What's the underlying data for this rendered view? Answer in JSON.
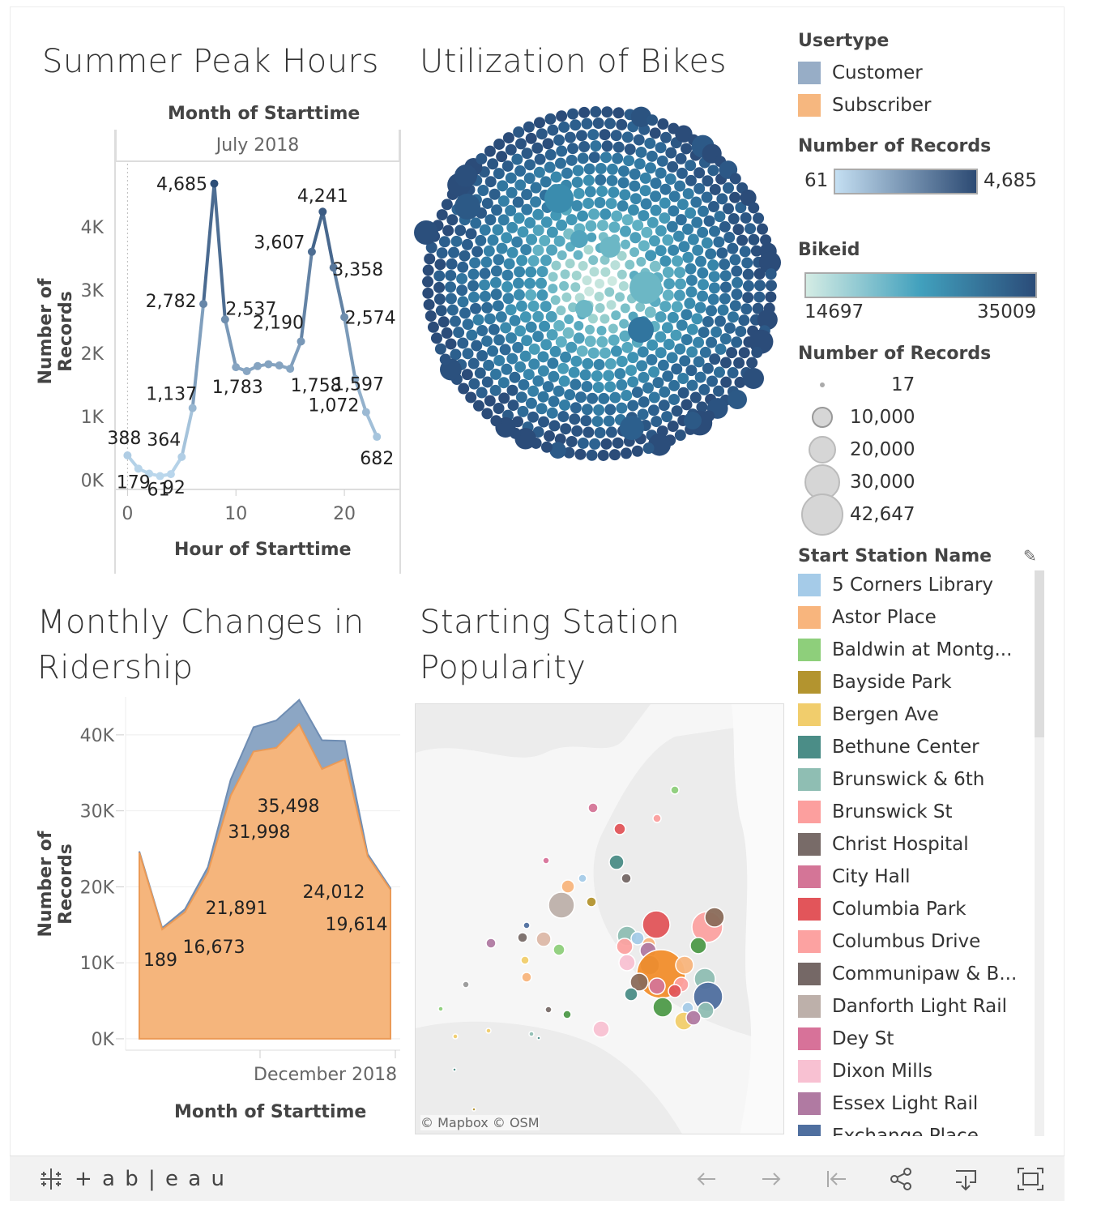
{
  "dashboard": {
    "titles": {
      "peak": "Summer Peak Hours",
      "util": "Utilization of Bikes",
      "monthly_line1": "Monthly Changes in",
      "monthly_line2": "Ridership",
      "station_line1": "Starting Station",
      "station_line2": "Popularity"
    }
  },
  "peak_chart": {
    "col_header": "Month of Starttime",
    "panel_label": "July 2018",
    "y_title": "Number of Records",
    "x_title": "Hour of Starttime",
    "y_ticks": [
      "4K",
      "3K",
      "2K",
      "1K",
      "0K"
    ],
    "x_ticks": [
      "0",
      "10",
      "20"
    ]
  },
  "monthly_chart": {
    "y_title": "Number of Records",
    "x_title": "Month of Starttime",
    "x_label": "December 2018",
    "y_ticks": [
      "40K",
      "30K",
      "20K",
      "10K",
      "0K"
    ]
  },
  "chart_data": [
    {
      "type": "line",
      "title": "Summer Peak Hours",
      "xlabel": "Hour of Starttime",
      "ylabel": "Number of Records",
      "x": [
        0,
        1,
        2,
        3,
        4,
        5,
        6,
        7,
        8,
        9,
        10,
        11,
        12,
        13,
        14,
        15,
        16,
        17,
        18,
        19,
        20,
        21,
        22,
        23
      ],
      "values": [
        388,
        179,
        100,
        61,
        92,
        364,
        1137,
        2782,
        4685,
        2537,
        1783,
        1720,
        1800,
        1830,
        1810,
        1758,
        2190,
        3607,
        4241,
        3358,
        2574,
        1597,
        1072,
        682
      ],
      "data_labels": [
        {
          "x": 0,
          "text": "388"
        },
        {
          "x": 1,
          "text": "179"
        },
        {
          "x": 3,
          "text": "61"
        },
        {
          "x": 4,
          "text": "92"
        },
        {
          "x": 5,
          "text": "364"
        },
        {
          "x": 6,
          "text": "1,137"
        },
        {
          "x": 7,
          "text": "2,782"
        },
        {
          "x": 8,
          "text": "4,685"
        },
        {
          "x": 9,
          "text": "2,537"
        },
        {
          "x": 10,
          "text": "1,783"
        },
        {
          "x": 15,
          "text": "1,758"
        },
        {
          "x": 16,
          "text": "2,190"
        },
        {
          "x": 17,
          "text": "3,607"
        },
        {
          "x": 18,
          "text": "4,241"
        },
        {
          "x": 19,
          "text": "3,358"
        },
        {
          "x": 20,
          "text": "2,574"
        },
        {
          "x": 21,
          "text": "1,597"
        },
        {
          "x": 22,
          "text": "1,072"
        },
        {
          "x": 23,
          "text": "682"
        }
      ],
      "xlim": [
        -1,
        25
      ],
      "ylim": [
        -150,
        5000
      ]
    },
    {
      "type": "area",
      "title": "Monthly Changes in Ridership",
      "xlabel": "Month of Starttime",
      "ylabel": "Number of Records",
      "x": [
        1,
        2,
        3,
        4,
        5,
        6,
        7,
        8,
        9,
        10,
        11,
        12
      ],
      "series": [
        {
          "name": "Subscriber",
          "values": [
            24500,
            14400,
            16673,
            21891,
            31998,
            37800,
            38300,
            41400,
            35498,
            36800,
            24012,
            19614
          ]
        },
        {
          "name": "Customer",
          "values": [
            150,
            189,
            400,
            700,
            2100,
            3200,
            3600,
            3200,
            3800,
            2400,
            300,
            200
          ]
        }
      ],
      "data_labels": [
        "189",
        "16,673",
        "21,891",
        "31,998",
        "35,498",
        "24,012",
        "19,614"
      ],
      "ylim": [
        -1500,
        45000
      ]
    },
    {
      "type": "scatter",
      "title": "Utilization of Bikes",
      "note": "packed bubbles by Bikeid, sized by Number of Records"
    }
  ],
  "legends": {
    "usertype": {
      "title": "Usertype",
      "items": [
        {
          "label": "Customer",
          "color": "#97adc6"
        },
        {
          "label": "Subscriber",
          "color": "#f6b77f"
        }
      ]
    },
    "records_color": {
      "title": "Number of Records",
      "min": "61",
      "max": "4,685",
      "from": "#c4dff2",
      "to": "#2c4a73"
    },
    "bikeid": {
      "title": "Bikeid",
      "min": "14697",
      "max": "35009",
      "from": "#d4ece4",
      "to": "#2b4c79"
    },
    "records_size": {
      "title": "Number of Records",
      "items": [
        "17",
        "10,000",
        "20,000",
        "30,000",
        "42,647"
      ]
    },
    "stations": {
      "title": "Start Station Name",
      "items": [
        {
          "label": "5 Corners Library",
          "color": "#a5cbe8"
        },
        {
          "label": "Astor Place",
          "color": "#f8b57d"
        },
        {
          "label": "Baldwin at Montg...",
          "color": "#8ecf7b"
        },
        {
          "label": "Bayside Park",
          "color": "#b3942f"
        },
        {
          "label": "Bergen Ave",
          "color": "#f1cd6c"
        },
        {
          "label": "Bethune Center",
          "color": "#4b8d87"
        },
        {
          "label": "Brunswick & 6th",
          "color": "#8fbeb3"
        },
        {
          "label": "Brunswick St",
          "color": "#fc9f9e"
        },
        {
          "label": "Christ Hospital",
          "color": "#786b68"
        },
        {
          "label": "City Hall",
          "color": "#d47597"
        },
        {
          "label": "Columbia Park",
          "color": "#e2555a"
        },
        {
          "label": "Columbus Drive",
          "color": "#fca2a1"
        },
        {
          "label": "Communipaw & B...",
          "color": "#756866"
        },
        {
          "label": "Danforth Light Rail",
          "color": "#bdb0aa"
        },
        {
          "label": "Dey St",
          "color": "#d77299"
        },
        {
          "label": "Dixon Mills",
          "color": "#f8c1d2"
        },
        {
          "label": "Essex Light Rail",
          "color": "#b07aa2"
        },
        {
          "label": "Exchange Place",
          "color": "#4f6f9f"
        }
      ]
    }
  },
  "map": {
    "attribution": "© Mapbox  © OSM"
  },
  "toolbar": {
    "brand": "+ a b | e a u"
  }
}
